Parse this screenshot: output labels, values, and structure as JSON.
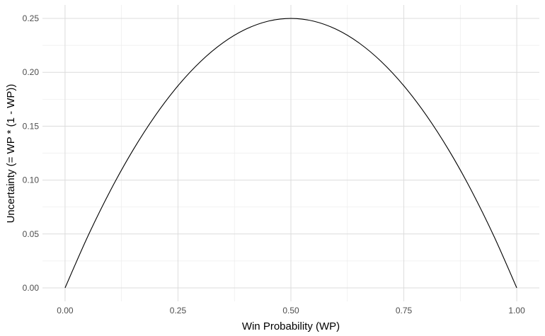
{
  "chart_data": {
    "type": "line",
    "title": "",
    "xlabel": "Win Probability (WP)",
    "ylabel": "Uncertainty (= WP * (1 - WP))",
    "xlim": [
      -0.05,
      1.05
    ],
    "ylim": [
      -0.0125,
      0.2625
    ],
    "x_ticks": [
      0.0,
      0.25,
      0.5,
      0.75,
      1.0
    ],
    "x_tick_labels": [
      "0.00",
      "0.25",
      "0.50",
      "0.75",
      "1.00"
    ],
    "y_ticks": [
      0.0,
      0.05,
      0.1,
      0.15,
      0.2,
      0.25
    ],
    "y_tick_labels": [
      "0.00",
      "0.05",
      "0.10",
      "0.15",
      "0.20",
      "0.25"
    ],
    "grid": true,
    "legend": "none",
    "series": [
      {
        "color": "#000000",
        "x": [
          0.0,
          0.05,
          0.1,
          0.15,
          0.2,
          0.25,
          0.3,
          0.35,
          0.4,
          0.45,
          0.5,
          0.55,
          0.6,
          0.65,
          0.7,
          0.75,
          0.8,
          0.85,
          0.9,
          0.95,
          1.0
        ],
        "y": [
          0.0,
          0.0475,
          0.09,
          0.1275,
          0.16,
          0.1875,
          0.21,
          0.2275,
          0.24,
          0.2475,
          0.25,
          0.2475,
          0.24,
          0.2275,
          0.21,
          0.1875,
          0.16,
          0.1275,
          0.09,
          0.0475,
          0.0
        ]
      }
    ]
  }
}
